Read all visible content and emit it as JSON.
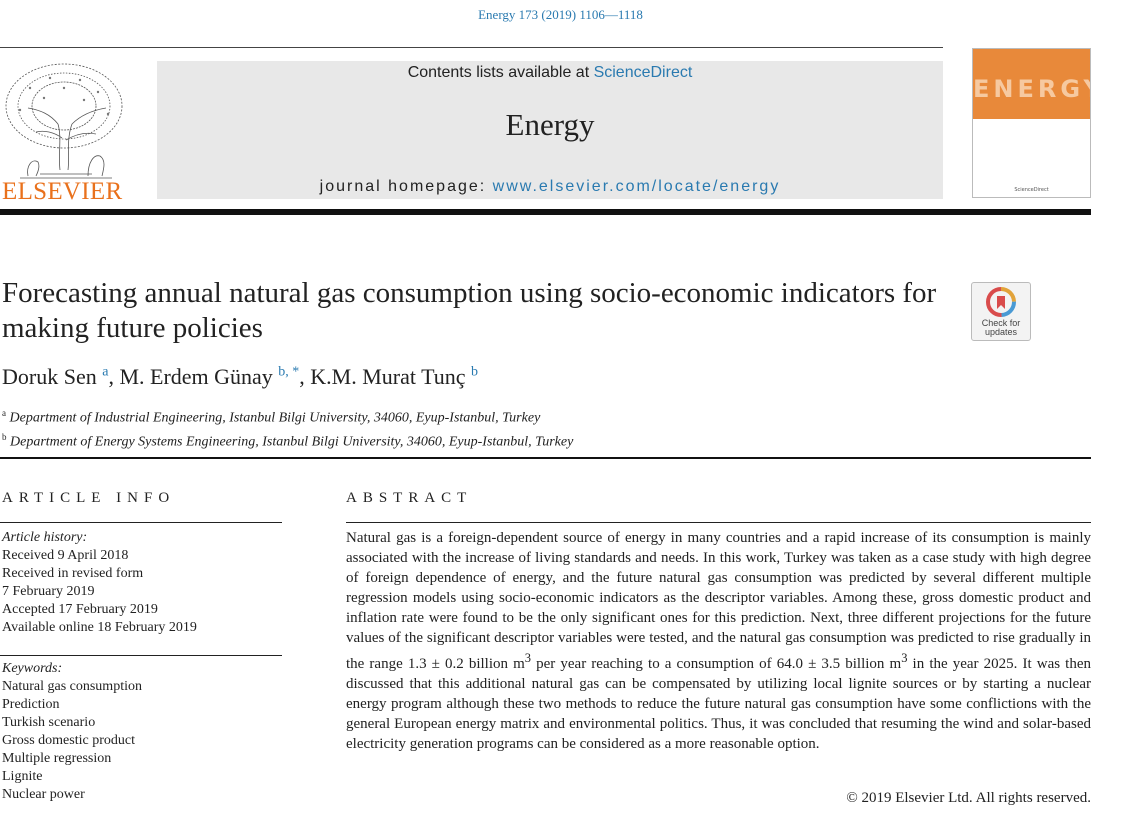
{
  "header": {
    "journal_ref": "Energy 173 (2019) 1106—1118",
    "publisher_logo_text": "ELSEVIER",
    "contents_prefix": "Contents lists available at ",
    "contents_link": "ScienceDirect",
    "journal_name": "Energy",
    "homepage_prefix": "journal homepage: ",
    "homepage_link": "www.elsevier.com/locate/energy",
    "cover_title": "ENERGY",
    "cover_footer": "ScienceDirect"
  },
  "article": {
    "title": "Forecasting annual natural gas consumption using socio-economic indicators for making future policies",
    "check_updates_label": "Check for updates",
    "authors": [
      {
        "name": "Doruk Sen",
        "sup": "a"
      },
      {
        "name": "M. Erdem Günay",
        "sup": "b, *"
      },
      {
        "name": "K.M. Murat Tunç",
        "sup": "b"
      }
    ],
    "affiliations": [
      {
        "sup": "a",
        "text": "Department of Industrial Engineering, Istanbul Bilgi University, 34060, Eyup-Istanbul, Turkey"
      },
      {
        "sup": "b",
        "text": "Department of Energy Systems Engineering, Istanbul Bilgi University, 34060, Eyup-Istanbul, Turkey"
      }
    ]
  },
  "article_info": {
    "heading": "ARTICLE INFO",
    "history_label": "Article history:",
    "history": [
      "Received 9 April 2018",
      "Received in revised form",
      "7 February 2019",
      "Accepted 17 February 2019",
      "Available online 18 February 2019"
    ],
    "keywords_label": "Keywords:",
    "keywords": [
      "Natural gas consumption",
      "Prediction",
      "Turkish scenario",
      "Gross domestic product",
      "Multiple regression",
      "Lignite",
      "Nuclear power"
    ]
  },
  "abstract": {
    "heading": "ABSTRACT",
    "part1": "Natural gas is a foreign-dependent source of energy in many countries and a rapid increase of its consumption is mainly associated with the increase of living standards and needs. In this work, Turkey was taken as a case study with high degree of foreign dependence of energy, and the future natural gas consumption was predicted by several different multiple regression models using socio-economic indicators as the descriptor variables. Among these, gross domestic product and inflation rate were found to be the only significant ones for this prediction. Next, three different projections for the future values of the significant descriptor variables were tested, and the natural gas consumption was predicted to rise gradually in the range 1.3 ± 0.2 billion m",
    "sup1": "3",
    "part2": " per year reaching to a consumption of 64.0 ± 3.5 billion m",
    "sup2": "3",
    "part3": " in the year 2025. It was then discussed that this additional natural gas can be compensated by utilizing local lignite sources or by starting a nuclear energy program although these two methods to reduce the future natural gas consumption have some conflictions with the general European energy matrix and environmental politics. Thus, it was concluded that resuming the wind and solar-based electricity generation programs can be considered as a more reasonable option.",
    "copyright": "© 2019 Elsevier Ltd. All rights reserved."
  }
}
